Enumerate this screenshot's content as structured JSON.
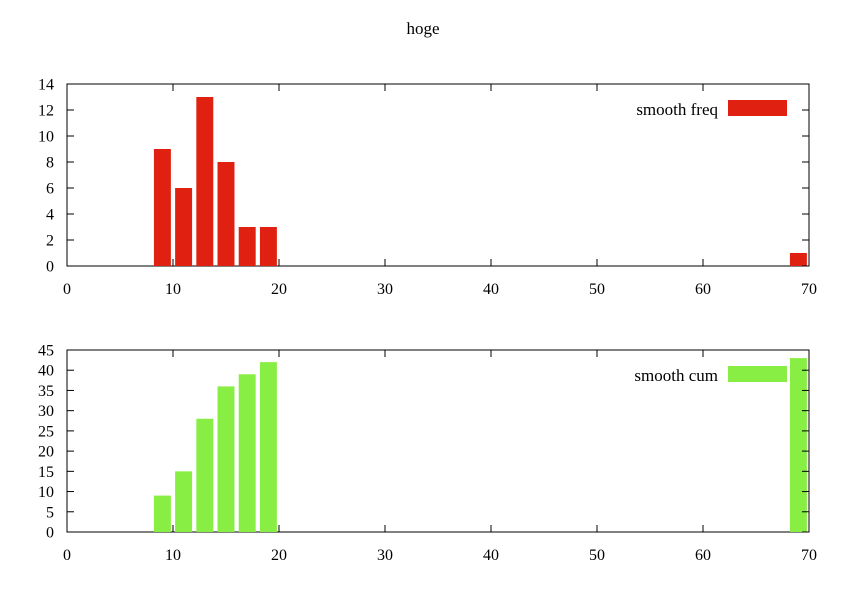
{
  "title": "hoge",
  "chart_data": [
    {
      "type": "bar",
      "series": [
        {
          "name": "smooth freq",
          "color": "#e02010",
          "x": [
            9,
            11,
            13,
            15,
            17,
            19,
            69
          ],
          "values": [
            9,
            6,
            13,
            8,
            3,
            3,
            1
          ]
        }
      ],
      "xlim": [
        0,
        70
      ],
      "ylim": [
        0,
        14
      ],
      "xticks": [
        "0",
        "10",
        "20",
        "30",
        "40",
        "50",
        "60",
        "70"
      ],
      "yticks": [
        "0",
        "2",
        "4",
        "6",
        "8",
        "10",
        "12",
        "14"
      ],
      "xtick_values": [
        0,
        10,
        20,
        30,
        40,
        50,
        60,
        70
      ],
      "ytick_values": [
        0,
        2,
        4,
        6,
        8,
        10,
        12,
        14
      ],
      "bar_width": 1.6,
      "legend": "top-right",
      "grid": false
    },
    {
      "type": "bar",
      "series": [
        {
          "name": "smooth cum",
          "color": "#88ee44",
          "x": [
            9,
            11,
            13,
            15,
            17,
            19,
            69
          ],
          "values": [
            9,
            15,
            28,
            36,
            39,
            42,
            43
          ]
        }
      ],
      "xlim": [
        0,
        70
      ],
      "ylim": [
        0,
        45
      ],
      "xticks": [
        "0",
        "10",
        "20",
        "30",
        "40",
        "50",
        "60",
        "70"
      ],
      "yticks": [
        "0",
        "5",
        "10",
        "15",
        "20",
        "25",
        "30",
        "35",
        "40",
        "45"
      ],
      "xtick_values": [
        0,
        10,
        20,
        30,
        40,
        50,
        60,
        70
      ],
      "ytick_values": [
        0,
        5,
        10,
        15,
        20,
        25,
        30,
        35,
        40,
        45
      ],
      "bar_width": 1.6,
      "legend": "top-right",
      "grid": false
    }
  ]
}
